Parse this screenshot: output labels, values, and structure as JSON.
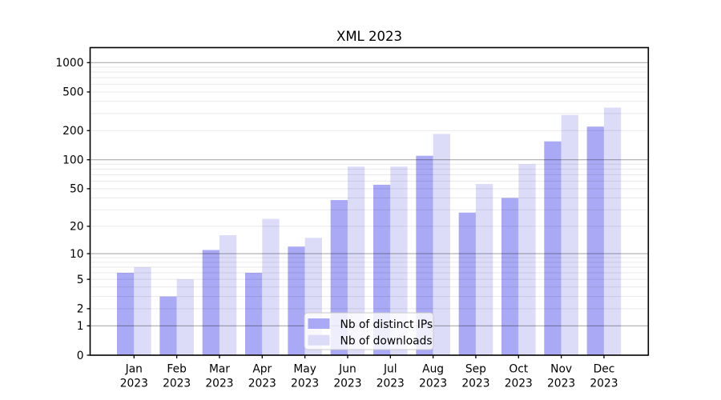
{
  "chart_data": {
    "type": "bar",
    "title": "XML 2023",
    "months": [
      "Jan",
      "Feb",
      "Mar",
      "Apr",
      "May",
      "Jun",
      "Jul",
      "Aug",
      "Sep",
      "Oct",
      "Nov",
      "Dec"
    ],
    "x_tick_line2": "2023",
    "series": [
      {
        "name": "Nb of distinct IPs",
        "color": "#a9a9f5",
        "values": [
          6,
          3,
          11,
          6,
          12,
          38,
          55,
          110,
          28,
          40,
          155,
          220
        ]
      },
      {
        "name": "Nb of downloads",
        "color": "#dcdcf9",
        "values": [
          7,
          5,
          16,
          24,
          15,
          85,
          85,
          185,
          56,
          90,
          290,
          345
        ]
      }
    ],
    "y_scale": "log10(1+y)",
    "ylim": [
      0,
      1430
    ],
    "y_ticks": [
      {
        "value": 0,
        "label": "0"
      },
      {
        "value": 1,
        "label": "1"
      },
      {
        "value": 2,
        "label": "2"
      },
      {
        "value": 5,
        "label": "5"
      },
      {
        "value": 10,
        "label": "10"
      },
      {
        "value": 20,
        "label": "20"
      },
      {
        "value": 50,
        "label": "50"
      },
      {
        "value": 100,
        "label": "100"
      },
      {
        "value": 200,
        "label": "200"
      },
      {
        "value": 500,
        "label": "500"
      },
      {
        "value": 1000,
        "label": "1000"
      }
    ],
    "grid": {
      "orientation": "horizontal",
      "major_at": [
        1,
        10,
        100,
        1000
      ],
      "minors": true,
      "above_bars": true
    },
    "legend": {
      "position": "lower center",
      "items": [
        "Nb of distinct IPs",
        "Nb of downloads"
      ]
    }
  },
  "colors": {
    "bar_ips": "#a9a9f5",
    "bar_downloads": "#dcdcf9",
    "major_grid": "rgba(0,0,0,0.33)",
    "minor_grid": "rgba(0,0,0,0.09)",
    "spine": "#000000",
    "legend_bg": "rgba(255,255,255,0.8)",
    "legend_border": "#c9c9c9"
  }
}
